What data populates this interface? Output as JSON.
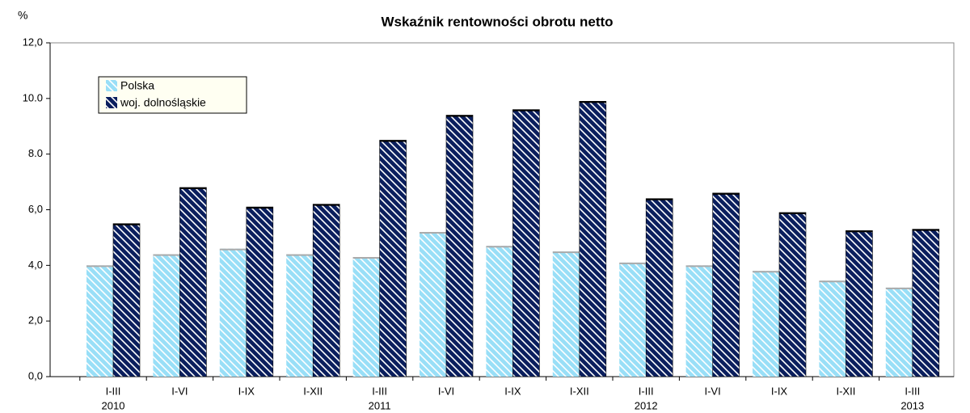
{
  "chart_data": {
    "type": "bar",
    "title": "Wskaźnik rentowności obrotu netto",
    "y_label": "%",
    "categories": [
      "I-III",
      "I-VI",
      "I-IX",
      "I-XII",
      "I-III",
      "I-VI",
      "I-IX",
      "I-XII",
      "I-III",
      "I-VI",
      "I-IX",
      "I-XII",
      "I-III"
    ],
    "category_groups": [
      "2010",
      null,
      null,
      null,
      "2011",
      null,
      null,
      null,
      "2012",
      null,
      null,
      null,
      "2013"
    ],
    "series": [
      {
        "name": "Polska",
        "color": "#99dff7",
        "values": [
          4.0,
          4.4,
          4.6,
          4.4,
          4.3,
          5.2,
          4.7,
          4.5,
          4.1,
          4.0,
          3.8,
          3.45,
          3.2
        ]
      },
      {
        "name": "woj. dolnośląskie",
        "color": "#0b1f5e",
        "values": [
          5.5,
          6.8,
          6.1,
          6.2,
          8.5,
          9.4,
          9.6,
          9.9,
          6.4,
          6.6,
          5.9,
          5.25,
          5.3
        ]
      }
    ],
    "ylim": [
      0,
      12
    ],
    "yticks": [
      {
        "value": 0,
        "label": "0,0"
      },
      {
        "value": 2,
        "label": "2,0"
      },
      {
        "value": 4,
        "label": "4,0"
      },
      {
        "value": 6,
        "label": "6,0"
      },
      {
        "value": 8,
        "label": "8.0"
      },
      {
        "value": 10,
        "label": "10.0"
      },
      {
        "value": 12,
        "label": "12,0"
      }
    ],
    "legend": "top-left"
  }
}
